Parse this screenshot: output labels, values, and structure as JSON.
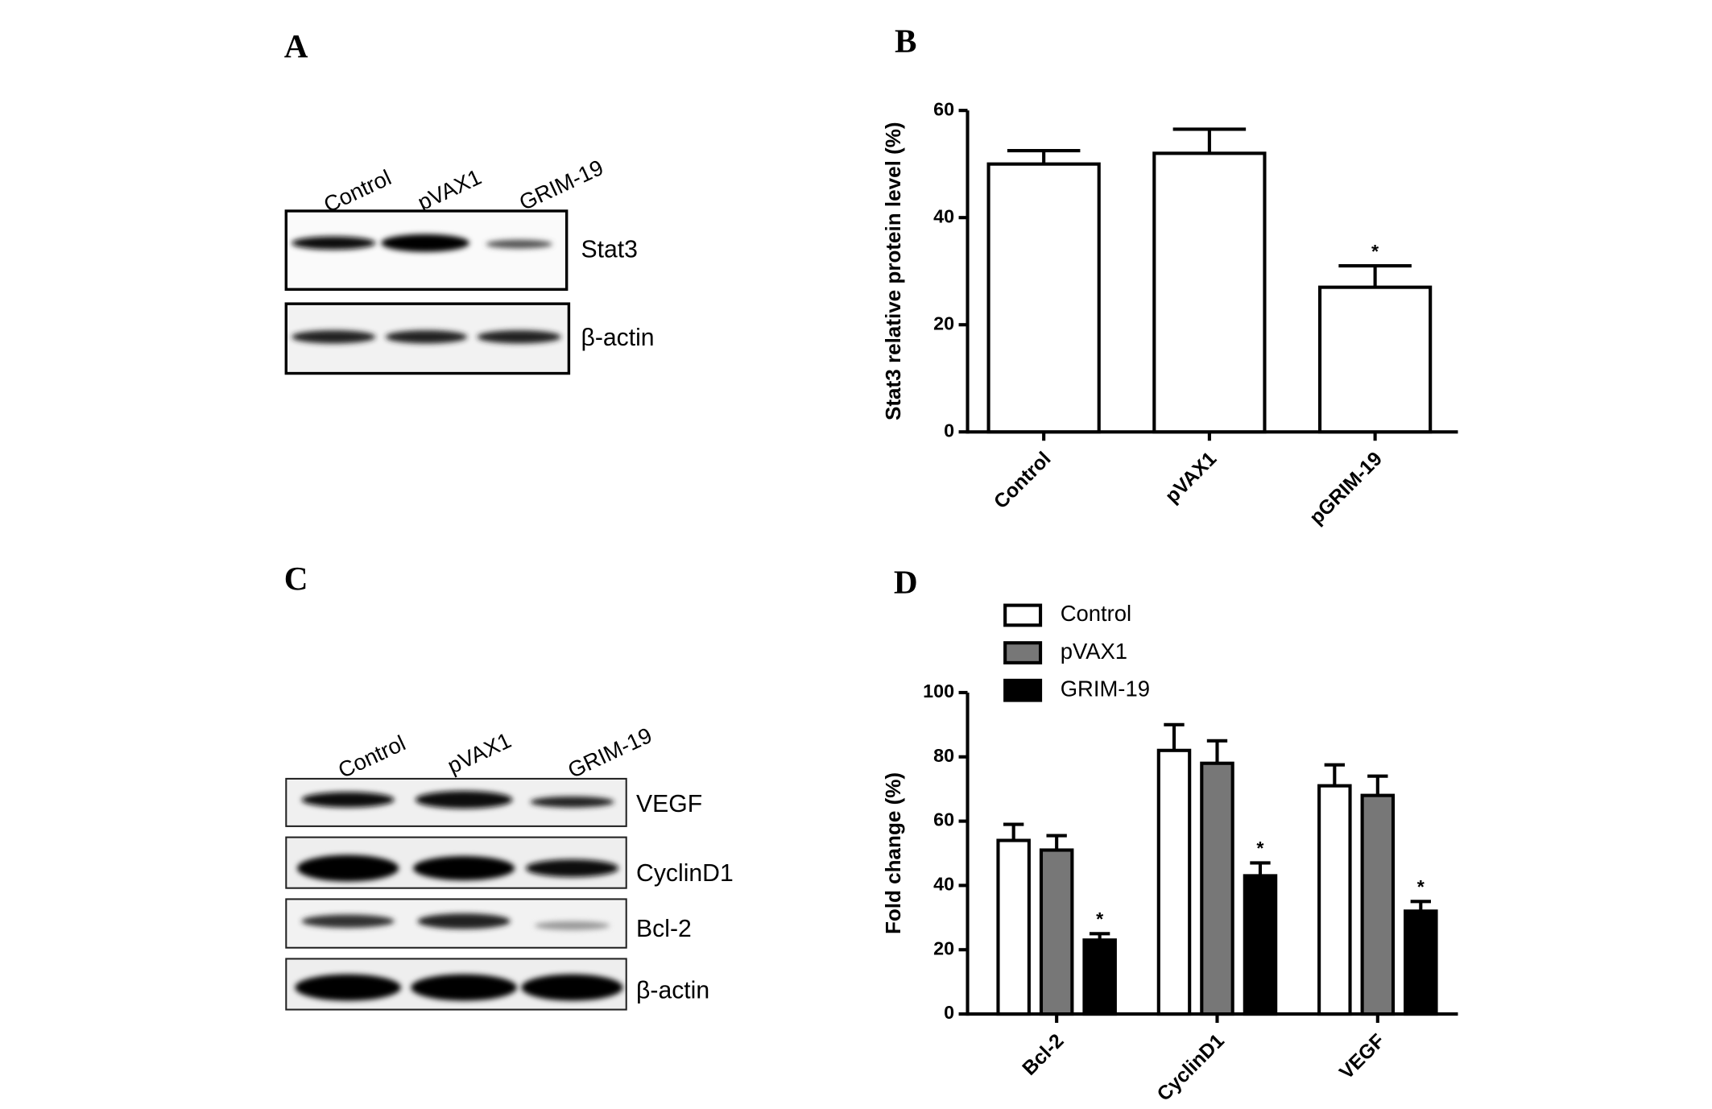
{
  "panel_labels": [
    "A",
    "B",
    "C",
    "D"
  ],
  "blots": [
    {
      "lanes": [
        "Control",
        "pVAX1",
        "GRIM-19"
      ],
      "rows": [
        "Stat3",
        "β-actin"
      ]
    },
    {
      "lanes": [
        "Control",
        "pVAX1",
        "GRIM-19"
      ],
      "rows": [
        "VEGF",
        "CyclinD1",
        "Bcl-2",
        "β-actin"
      ]
    }
  ],
  "chart_data": [
    {
      "type": "bar",
      "y_label": "Stat3 relative protein level (%)",
      "categories": [
        "Control",
        "pVAX1",
        "pGRIM-19"
      ],
      "values": [
        50,
        52,
        27
      ],
      "errors": [
        2.5,
        4.5,
        4
      ],
      "color": "#ffffff",
      "ylim": [
        0,
        60
      ],
      "yticks": [
        0,
        20,
        40,
        60
      ],
      "annotations": [
        {
          "text": "*",
          "category": 2
        }
      ]
    },
    {
      "type": "bar",
      "y_label": "Fold change (%)",
      "categories": [
        "Bcl-2",
        "CyclinD1",
        "VEGF"
      ],
      "series": [
        {
          "name": "Control",
          "color": "#ffffff",
          "values": [
            54,
            82,
            71
          ],
          "errors": [
            5,
            8,
            6.5
          ]
        },
        {
          "name": "pVAX1",
          "color": "#777777",
          "values": [
            51,
            78,
            68
          ],
          "errors": [
            4.5,
            7,
            6
          ]
        },
        {
          "name": "GRIM-19",
          "color": "#000000",
          "values": [
            23,
            43,
            32
          ],
          "errors": [
            2,
            4,
            3
          ]
        }
      ],
      "ylim": [
        0,
        100
      ],
      "yticks": [
        0,
        20,
        40,
        60,
        80,
        100
      ],
      "annotations": [
        {
          "text": "*",
          "series": 2,
          "category": 0
        },
        {
          "text": "*",
          "series": 2,
          "category": 1
        },
        {
          "text": "*",
          "series": 2,
          "category": 2
        }
      ]
    }
  ]
}
